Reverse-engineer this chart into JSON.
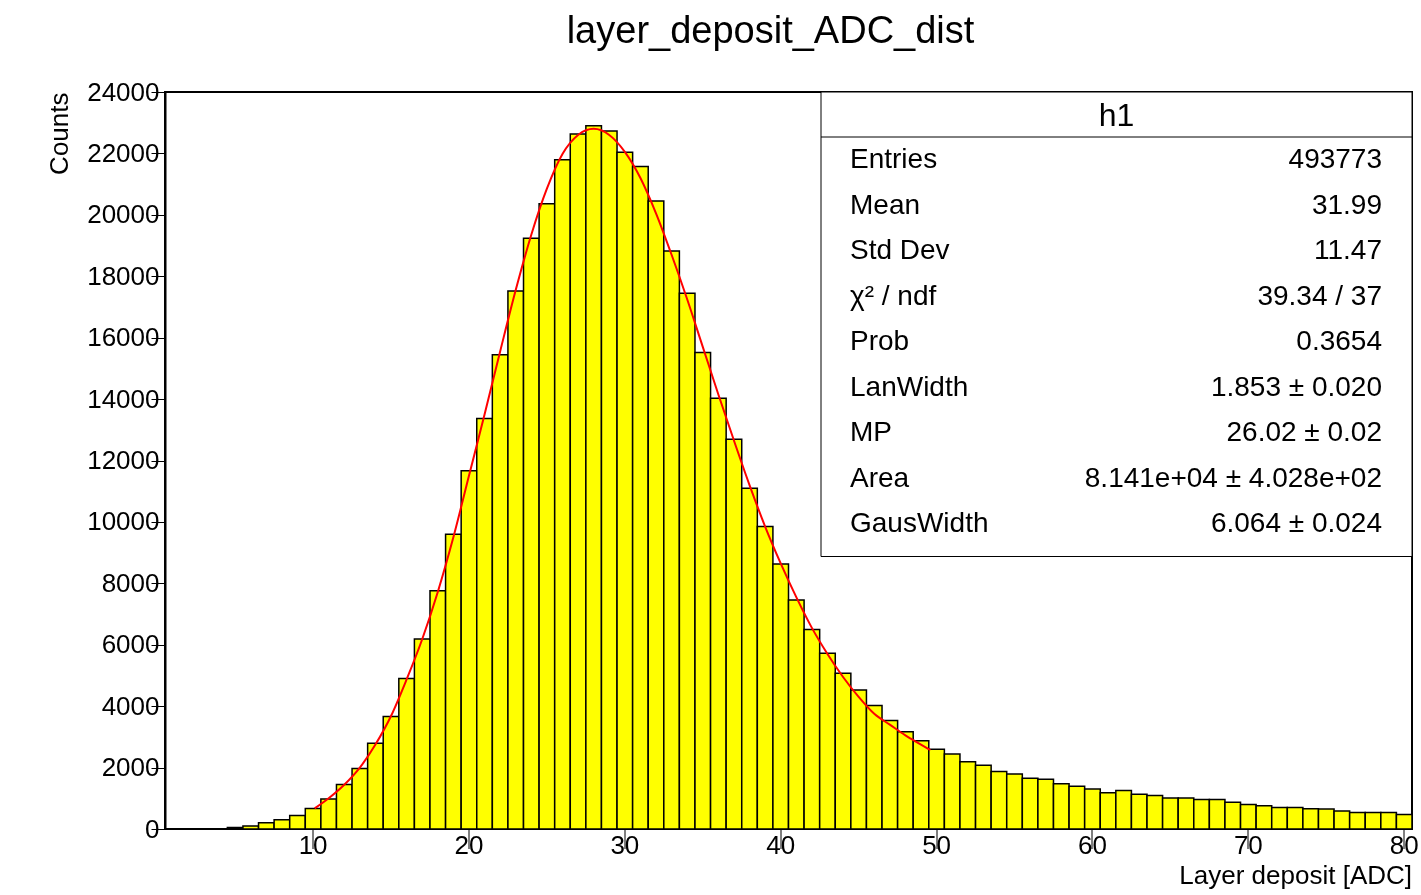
{
  "chart_data": {
    "type": "histogram",
    "title": "layer_deposit_ADC_dist",
    "xlabel": "Layer deposit [ADC]",
    "ylabel": "Counts",
    "bins": [
      0.5,
      1.5,
      2.5,
      3.5,
      4.5,
      5.5,
      6.5,
      7.5,
      8.5,
      9.5,
      10.5,
      11.5,
      12.5,
      13.5,
      14.5,
      15.5,
      16.5,
      17.5,
      18.5,
      19.5,
      20.5,
      21.5,
      22.5,
      23.5,
      24.5,
      25.5,
      26.5,
      27.5,
      28.5,
      29.5,
      30.5,
      31.5,
      32.5,
      33.5,
      34.5,
      35.5,
      36.5,
      37.5,
      38.5,
      39.5,
      40.5,
      41.5,
      42.5,
      43.5,
      44.5,
      45.5,
      46.5,
      47.5,
      48.5,
      49.5,
      50.5,
      51.5,
      52.5,
      53.5,
      54.5,
      55.5,
      56.5,
      57.5,
      58.5,
      59.5,
      60.5,
      61.5,
      62.5,
      63.5,
      64.5,
      65.5,
      66.5,
      67.5,
      68.5,
      69.5,
      70.5,
      71.5,
      72.5,
      73.5,
      74.5,
      75.5,
      76.5,
      77.5,
      78.5,
      79.5,
      80.5
    ],
    "series": [
      {
        "color": "#ffff00",
        "values": [
          0,
          0,
          0,
          0,
          50,
          100,
          200,
          300,
          440,
          670,
          980,
          1450,
          1970,
          2790,
          3660,
          4900,
          6190,
          7760,
          9600,
          11670,
          13370,
          15440,
          17520,
          19240,
          20360,
          21790,
          22630,
          22900,
          22730,
          22040,
          21570,
          20450,
          18820,
          17450,
          15520,
          14030,
          12690,
          11100,
          9850,
          8630,
          7460,
          6500,
          5720,
          5070,
          4530,
          4020,
          3530,
          3170,
          2870,
          2600,
          2440,
          2190,
          2080,
          1870,
          1790,
          1650,
          1620,
          1470,
          1390,
          1300,
          1180,
          1250,
          1130,
          1090,
          1010,
          1010,
          960,
          960,
          870,
          800,
          760,
          700,
          700,
          660,
          650,
          590,
          540,
          540,
          540,
          470
        ]
      },
      {
        "type": "line",
        "color": "#ff0000",
        "x": [
          10.1,
          11,
          12,
          13,
          14,
          15,
          16,
          17,
          18,
          19,
          20,
          21,
          22,
          23,
          24,
          25,
          26,
          27,
          28,
          29,
          30,
          31,
          32,
          33,
          34,
          35,
          36,
          37,
          38,
          39,
          40,
          41,
          42,
          43,
          44,
          45,
          46,
          47,
          48,
          49,
          49.6
        ],
        "values": [
          670,
          1000,
          1440,
          2000,
          2750,
          3680,
          4870,
          6180,
          7720,
          9500,
          11500,
          13500,
          15550,
          17550,
          19350,
          20850,
          21980,
          22600,
          22800,
          22600,
          22050,
          21200,
          20050,
          18700,
          17250,
          15700,
          14150,
          12650,
          11200,
          9850,
          8650,
          7550,
          6550,
          5700,
          4950,
          4300,
          3750,
          3400,
          3050,
          2750,
          2570
        ]
      }
    ],
    "xlim": [
      0.5,
      80.5
    ],
    "xticks": [
      10,
      20,
      30,
      40,
      50,
      60,
      70,
      80
    ],
    "ylim": [
      0,
      24000
    ],
    "yticks": [
      0,
      2000,
      4000,
      6000,
      8000,
      10000,
      12000,
      14000,
      16000,
      18000,
      20000,
      22000,
      24000
    ],
    "grid": false,
    "annotations": [
      "h1",
      "Entries",
      "493773",
      "Mean",
      "31.99",
      "Std Dev",
      "11.47",
      "χ² / ndf",
      "39.34 / 37",
      "Prob",
      "0.3654",
      "LanWidth",
      "1.853 ± 0.020",
      "MP",
      "26.02 ± 0.02",
      "Area",
      "8.141e+04 ± 4.028e+02",
      "GausWidth",
      "6.064 ± 0.024"
    ]
  }
}
